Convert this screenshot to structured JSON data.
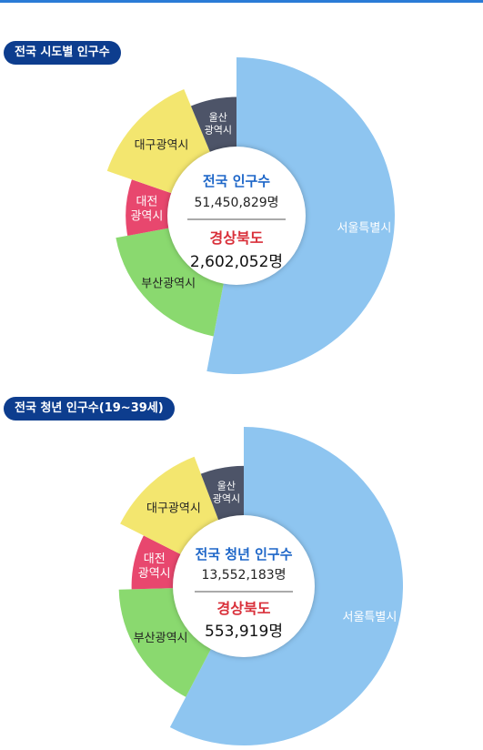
{
  "colors": {
    "seoul": "#8ec5f0",
    "busan": "#8ad96f",
    "daejeon": "#e8476e",
    "daegu": "#f3e66f",
    "ulsan": "#4d5468",
    "accent": "#0d3d8e",
    "title_blue": "#1d66c8",
    "region_red": "#d9303a"
  },
  "chart_data": [
    {
      "type": "pie",
      "title": "전국 시도별 인구수",
      "center": {
        "title": "전국 인구수",
        "total": "51,450,829명",
        "region": "경상북도",
        "region_value": "2,602,052명"
      },
      "slices": [
        {
          "key": "seoul",
          "label": "서울특별시",
          "lines": [
            "서울특별시"
          ],
          "value": 9411000,
          "scale": 1.0
        },
        {
          "key": "busan",
          "label": "부산광역시",
          "lines": [
            "부산광역시"
          ],
          "value": 3393000,
          "scale": 0.775
        },
        {
          "key": "daejeon",
          "label": "대전광역시",
          "lines": [
            "대전",
            "광역시"
          ],
          "value": 1453000,
          "scale": 0.7
        },
        {
          "key": "daegu",
          "label": "대구광역시",
          "lines": [
            "대구광역시"
          ],
          "value": 2385000,
          "scale": 0.865
        },
        {
          "key": "ulsan",
          "label": "울산광역시",
          "lines": [
            "울산",
            "광역시"
          ],
          "value": 1113000,
          "scale": 0.75
        }
      ]
    },
    {
      "type": "pie",
      "title": "전국 청년 인구수(19~39세)",
      "center": {
        "title": "전국 청년 인구수",
        "total": "13,552,183명",
        "region": "경상북도",
        "region_value": "553,919명"
      },
      "slices": [
        {
          "key": "seoul",
          "label": "서울특별시",
          "lines": [
            "서울특별시"
          ],
          "value": 2996000,
          "scale": 1.0
        },
        {
          "key": "busan",
          "label": "부산광역시",
          "lines": [
            "부산광역시"
          ],
          "value": 878000,
          "scale": 0.785
        },
        {
          "key": "daejeon",
          "label": "대전광역시",
          "lines": [
            "대전",
            "광역시"
          ],
          "value": 409000,
          "scale": 0.705
        },
        {
          "key": "daegu",
          "label": "대구광역시",
          "lines": [
            "대구광역시"
          ],
          "value": 610000,
          "scale": 0.87
        },
        {
          "key": "ulsan",
          "label": "울산광역시",
          "lines": [
            "울산",
            "광역시"
          ],
          "value": 302000,
          "scale": 0.755
        }
      ]
    }
  ]
}
